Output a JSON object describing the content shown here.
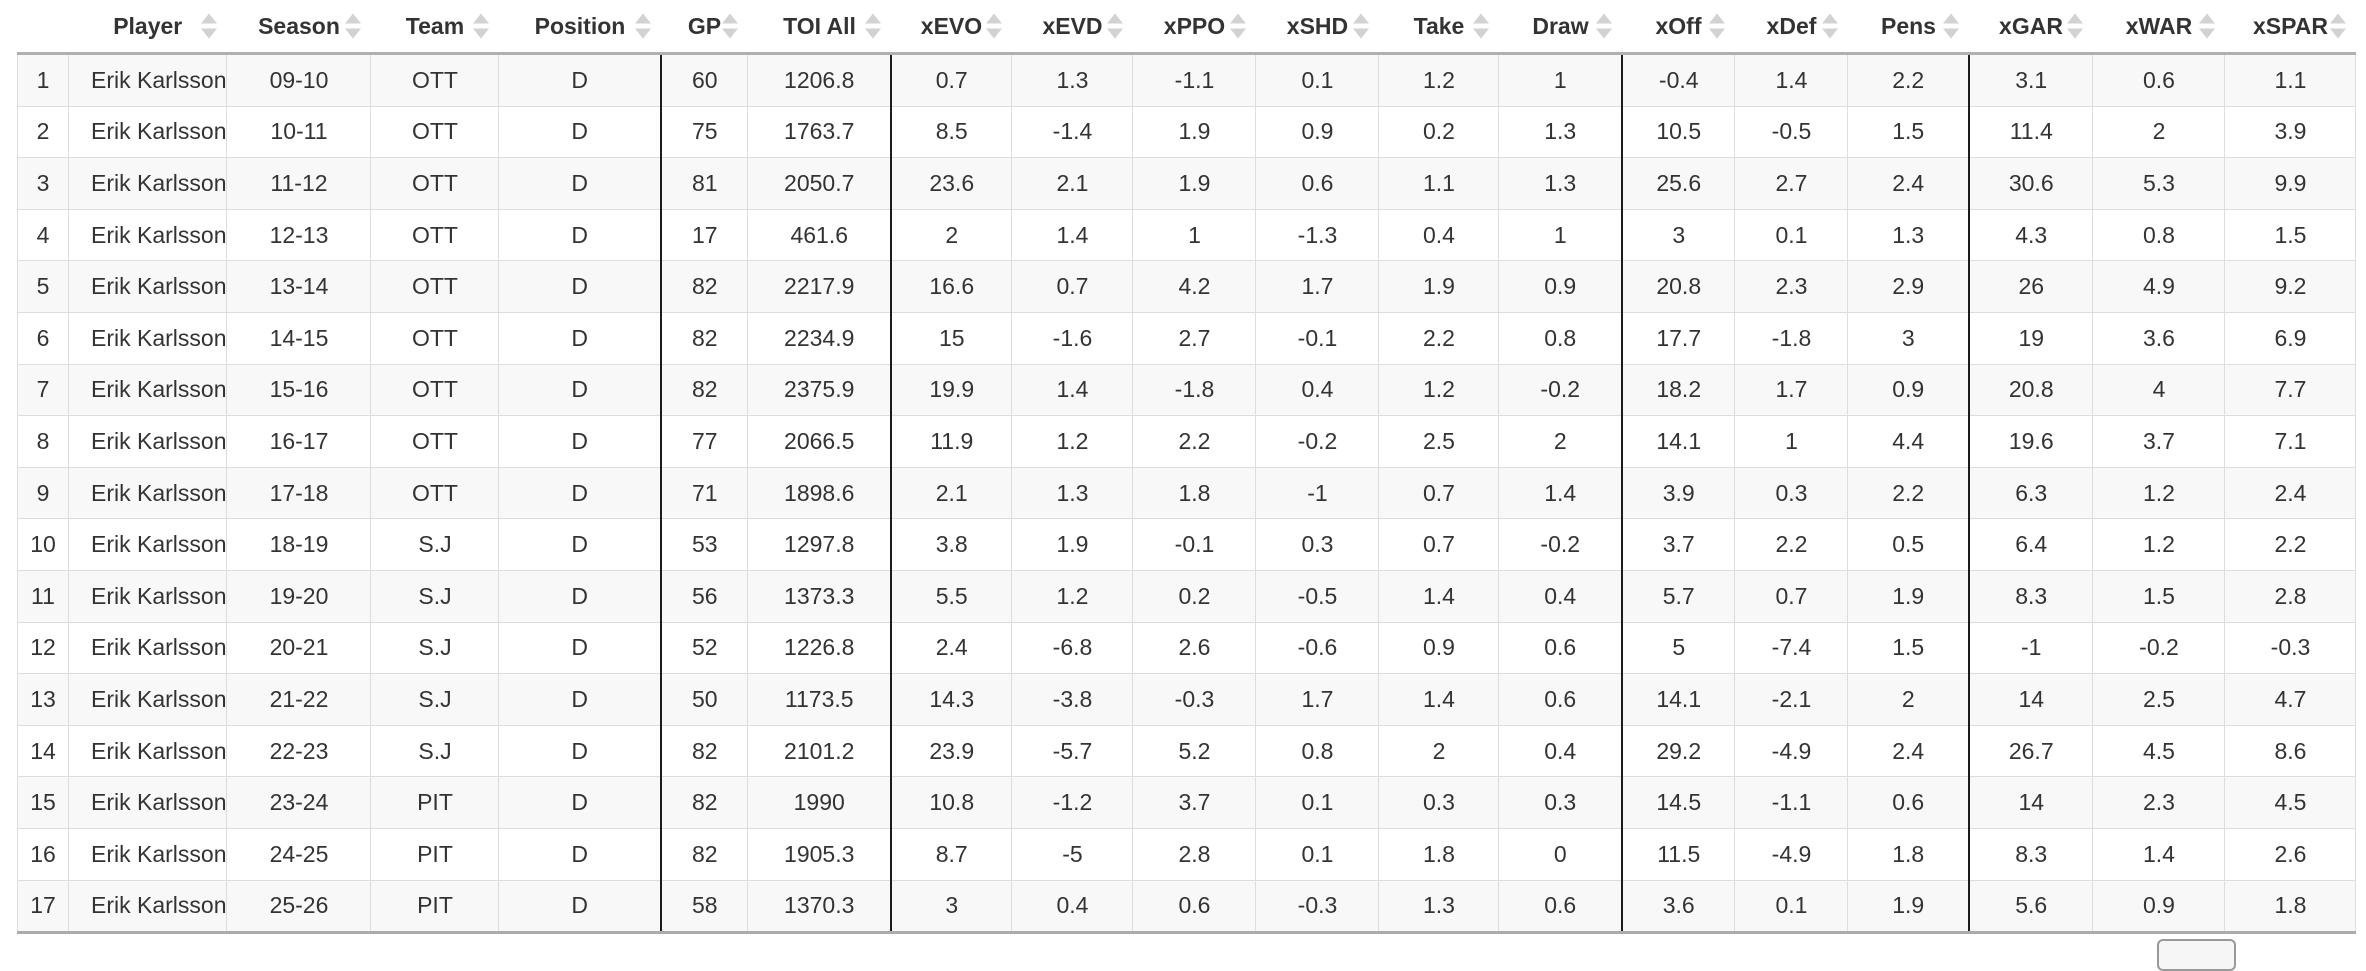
{
  "colors": {
    "row_stripe": "#f8f8f8",
    "cell_border": "#dddddd",
    "group_separator": "#1c1c1c",
    "header_bar": "#b0b0b0",
    "header_text": "#333333",
    "body_text": "#333333",
    "sort_arrow": "#d2d2d2"
  },
  "table": {
    "columns": [
      {
        "key": "index",
        "label": "",
        "sortable": false
      },
      {
        "key": "player",
        "label": "Player",
        "sortable": true
      },
      {
        "key": "season",
        "label": "Season",
        "sortable": true
      },
      {
        "key": "team",
        "label": "Team",
        "sortable": true
      },
      {
        "key": "position",
        "label": "Position",
        "sortable": true
      },
      {
        "key": "gp",
        "label": "GP",
        "sortable": true
      },
      {
        "key": "toi_all",
        "label": "TOI All",
        "sortable": true
      },
      {
        "key": "xevo",
        "label": "xEVO",
        "sortable": true
      },
      {
        "key": "xevd",
        "label": "xEVD",
        "sortable": true
      },
      {
        "key": "xppo",
        "label": "xPPO",
        "sortable": true
      },
      {
        "key": "xshd",
        "label": "xSHD",
        "sortable": true
      },
      {
        "key": "take",
        "label": "Take",
        "sortable": true
      },
      {
        "key": "draw",
        "label": "Draw",
        "sortable": true
      },
      {
        "key": "xoff",
        "label": "xOff",
        "sortable": true
      },
      {
        "key": "xdef",
        "label": "xDef",
        "sortable": true
      },
      {
        "key": "pens",
        "label": "Pens",
        "sortable": true
      },
      {
        "key": "xgar",
        "label": "xGAR",
        "sortable": true
      },
      {
        "key": "xwar",
        "label": "xWAR",
        "sortable": true
      },
      {
        "key": "xspar",
        "label": "xSPAR",
        "sortable": true
      }
    ],
    "rows": [
      [
        "1",
        "Erik Karlsson",
        "09-10",
        "OTT",
        "D",
        "60",
        "1206.8",
        "0.7",
        "1.3",
        "-1.1",
        "0.1",
        "1.2",
        "1",
        "-0.4",
        "1.4",
        "2.2",
        "3.1",
        "0.6",
        "1.1"
      ],
      [
        "2",
        "Erik Karlsson",
        "10-11",
        "OTT",
        "D",
        "75",
        "1763.7",
        "8.5",
        "-1.4",
        "1.9",
        "0.9",
        "0.2",
        "1.3",
        "10.5",
        "-0.5",
        "1.5",
        "11.4",
        "2",
        "3.9"
      ],
      [
        "3",
        "Erik Karlsson",
        "11-12",
        "OTT",
        "D",
        "81",
        "2050.7",
        "23.6",
        "2.1",
        "1.9",
        "0.6",
        "1.1",
        "1.3",
        "25.6",
        "2.7",
        "2.4",
        "30.6",
        "5.3",
        "9.9"
      ],
      [
        "4",
        "Erik Karlsson",
        "12-13",
        "OTT",
        "D",
        "17",
        "461.6",
        "2",
        "1.4",
        "1",
        "-1.3",
        "0.4",
        "1",
        "3",
        "0.1",
        "1.3",
        "4.3",
        "0.8",
        "1.5"
      ],
      [
        "5",
        "Erik Karlsson",
        "13-14",
        "OTT",
        "D",
        "82",
        "2217.9",
        "16.6",
        "0.7",
        "4.2",
        "1.7",
        "1.9",
        "0.9",
        "20.8",
        "2.3",
        "2.9",
        "26",
        "4.9",
        "9.2"
      ],
      [
        "6",
        "Erik Karlsson",
        "14-15",
        "OTT",
        "D",
        "82",
        "2234.9",
        "15",
        "-1.6",
        "2.7",
        "-0.1",
        "2.2",
        "0.8",
        "17.7",
        "-1.8",
        "3",
        "19",
        "3.6",
        "6.9"
      ],
      [
        "7",
        "Erik Karlsson",
        "15-16",
        "OTT",
        "D",
        "82",
        "2375.9",
        "19.9",
        "1.4",
        "-1.8",
        "0.4",
        "1.2",
        "-0.2",
        "18.2",
        "1.7",
        "0.9",
        "20.8",
        "4",
        "7.7"
      ],
      [
        "8",
        "Erik Karlsson",
        "16-17",
        "OTT",
        "D",
        "77",
        "2066.5",
        "11.9",
        "1.2",
        "2.2",
        "-0.2",
        "2.5",
        "2",
        "14.1",
        "1",
        "4.4",
        "19.6",
        "3.7",
        "7.1"
      ],
      [
        "9",
        "Erik Karlsson",
        "17-18",
        "OTT",
        "D",
        "71",
        "1898.6",
        "2.1",
        "1.3",
        "1.8",
        "-1",
        "0.7",
        "1.4",
        "3.9",
        "0.3",
        "2.2",
        "6.3",
        "1.2",
        "2.4"
      ],
      [
        "10",
        "Erik Karlsson",
        "18-19",
        "S.J",
        "D",
        "53",
        "1297.8",
        "3.8",
        "1.9",
        "-0.1",
        "0.3",
        "0.7",
        "-0.2",
        "3.7",
        "2.2",
        "0.5",
        "6.4",
        "1.2",
        "2.2"
      ],
      [
        "11",
        "Erik Karlsson",
        "19-20",
        "S.J",
        "D",
        "56",
        "1373.3",
        "5.5",
        "1.2",
        "0.2",
        "-0.5",
        "1.4",
        "0.4",
        "5.7",
        "0.7",
        "1.9",
        "8.3",
        "1.5",
        "2.8"
      ],
      [
        "12",
        "Erik Karlsson",
        "20-21",
        "S.J",
        "D",
        "52",
        "1226.8",
        "2.4",
        "-6.8",
        "2.6",
        "-0.6",
        "0.9",
        "0.6",
        "5",
        "-7.4",
        "1.5",
        "-1",
        "-0.2",
        "-0.3"
      ],
      [
        "13",
        "Erik Karlsson",
        "21-22",
        "S.J",
        "D",
        "50",
        "1173.5",
        "14.3",
        "-3.8",
        "-0.3",
        "1.7",
        "1.4",
        "0.6",
        "14.1",
        "-2.1",
        "2",
        "14",
        "2.5",
        "4.7"
      ],
      [
        "14",
        "Erik Karlsson",
        "22-23",
        "S.J",
        "D",
        "82",
        "2101.2",
        "23.9",
        "-5.7",
        "5.2",
        "0.8",
        "2",
        "0.4",
        "29.2",
        "-4.9",
        "2.4",
        "26.7",
        "4.5",
        "8.6"
      ],
      [
        "15",
        "Erik Karlsson",
        "23-24",
        "PIT",
        "D",
        "82",
        "1990",
        "10.8",
        "-1.2",
        "3.7",
        "0.1",
        "0.3",
        "0.3",
        "14.5",
        "-1.1",
        "0.6",
        "14",
        "2.3",
        "4.5"
      ],
      [
        "16",
        "Erik Karlsson",
        "24-25",
        "PIT",
        "D",
        "82",
        "1905.3",
        "8.7",
        "-5",
        "2.8",
        "0.1",
        "1.8",
        "0",
        "11.5",
        "-4.9",
        "1.8",
        "8.3",
        "1.4",
        "2.6"
      ],
      [
        "17",
        "Erik Karlsson",
        "25-26",
        "PIT",
        "D",
        "58",
        "1370.3",
        "3",
        "0.4",
        "0.6",
        "-0.3",
        "1.3",
        "0.6",
        "3.6",
        "0.1",
        "1.9",
        "5.6",
        "0.9",
        "1.8"
      ]
    ]
  }
}
